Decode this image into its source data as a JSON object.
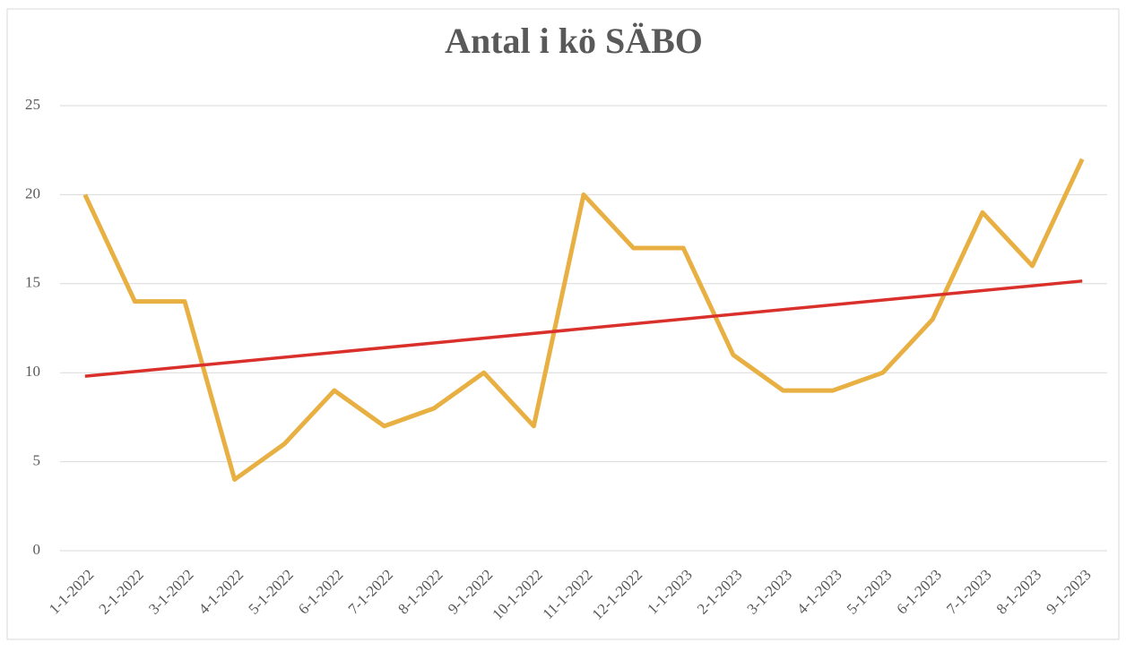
{
  "chart_data": {
    "type": "line",
    "title": "Antal i kö SÄBO",
    "categories": [
      "1-1-2022",
      "2-1-2022",
      "3-1-2022",
      "4-1-2022",
      "5-1-2022",
      "6-1-2022",
      "7-1-2022",
      "8-1-2022",
      "9-1-2022",
      "10-1-2022",
      "11-1-2022",
      "12-1-2022",
      "1-1-2023",
      "2-1-2023",
      "3-1-2023",
      "4-1-2023",
      "5-1-2023",
      "6-1-2023",
      "7-1-2023",
      "8-1-2023",
      "9-1-2023"
    ],
    "values": [
      20,
      14,
      14,
      4,
      6,
      9,
      7,
      8,
      10,
      7,
      20,
      17,
      17,
      11,
      9,
      9,
      10,
      13,
      19,
      16,
      22
    ],
    "color": "#e8b042",
    "trendline": {
      "color": "#d9302b",
      "values": [
        9.8,
        15.15
      ]
    },
    "ylim": [
      0,
      25
    ],
    "yticks": [
      0,
      5,
      10,
      15,
      20,
      25
    ],
    "grid": true
  }
}
